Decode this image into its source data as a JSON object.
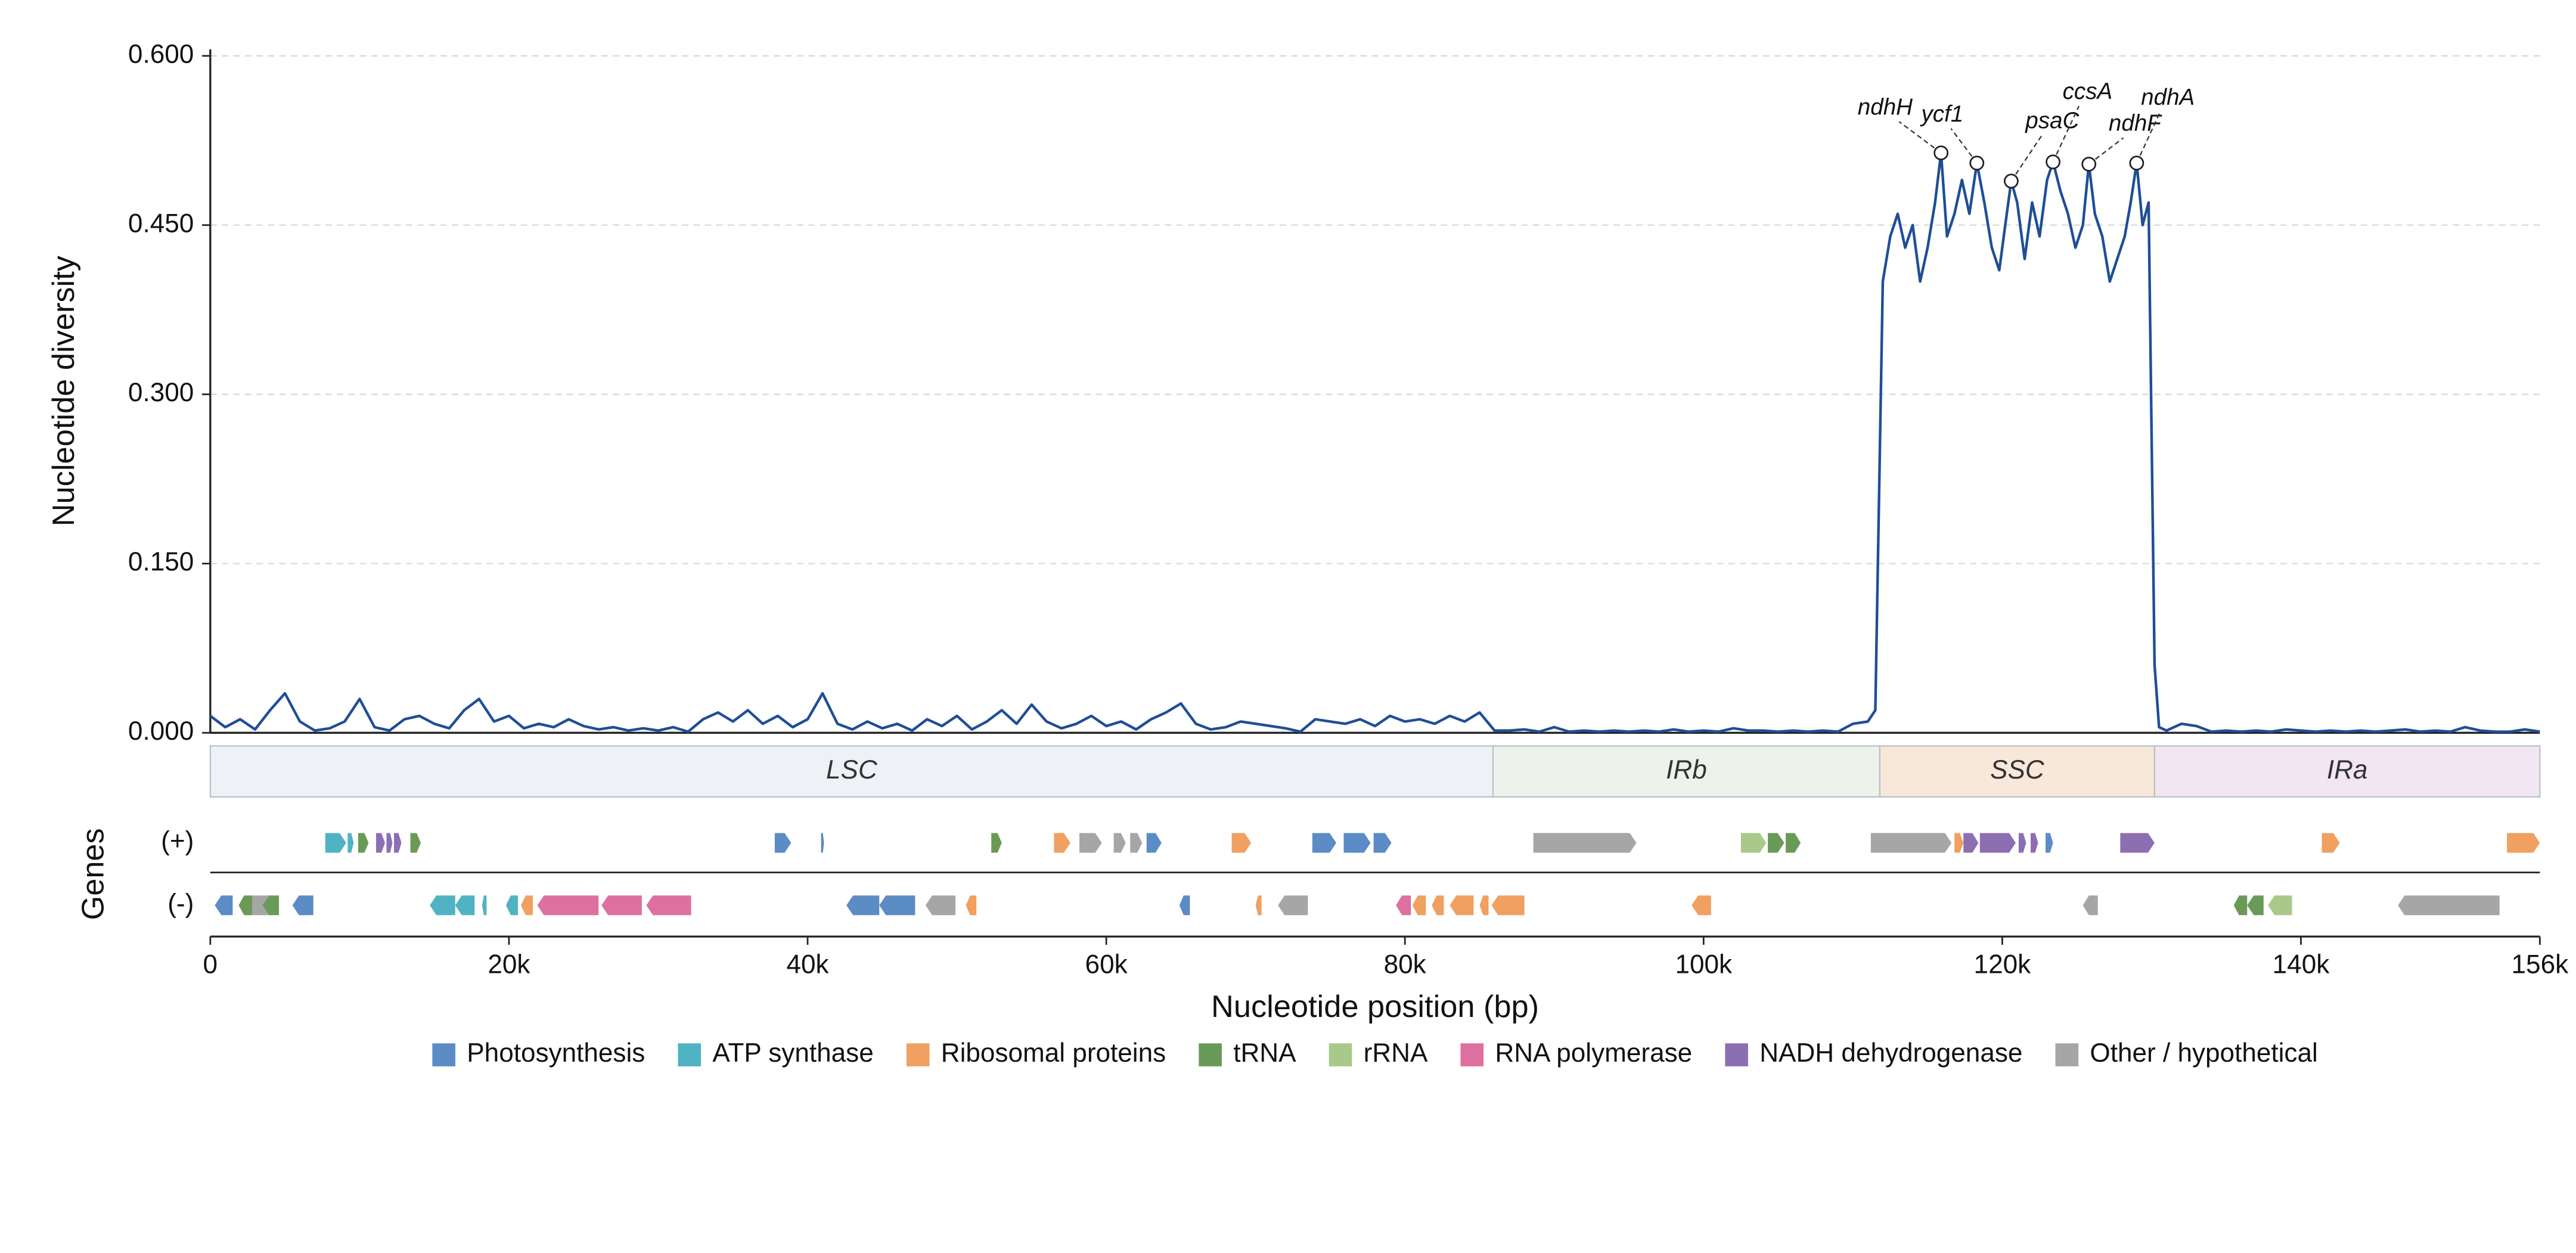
{
  "chart_data": {
    "type": "line",
    "y_label": "Nucleotide diversity",
    "x_label": "Nucleotide position (bp)",
    "xlim": [
      0,
      156000
    ],
    "ylim": [
      0,
      0.6
    ],
    "xticks": [
      0,
      {
        "value": 20000,
        "label": "20k"
      },
      {
        "value": 40000,
        "label": "40k"
      },
      {
        "value": 60000,
        "label": "60k"
      },
      {
        "value": 80000,
        "label": "80k"
      },
      {
        "value": 100000,
        "label": "100k"
      },
      {
        "value": 120000,
        "label": "120k"
      },
      {
        "value": 140000,
        "label": "140k"
      },
      {
        "value": 156000,
        "label": "156k"
      }
    ],
    "yticks": [
      {
        "value": 0,
        "label": "0.000"
      },
      {
        "value": 0.15,
        "label": "0.150"
      },
      {
        "value": 0.3,
        "label": "0.300"
      },
      {
        "value": 0.45,
        "label": "0.450"
      },
      {
        "value": 0.6,
        "label": "0.600"
      }
    ],
    "grid": true,
    "color": "#1f4e96",
    "x": [
      0,
      1000,
      2000,
      3000,
      4000,
      5000,
      6000,
      7000,
      8000,
      9000,
      10000,
      11000,
      12000,
      13000,
      14000,
      15000,
      16000,
      17000,
      18000,
      19000,
      20000,
      21000,
      22000,
      23000,
      24000,
      25000,
      26000,
      27000,
      28000,
      29000,
      30000,
      31000,
      32000,
      33000,
      34000,
      35000,
      36000,
      37000,
      38000,
      39000,
      40000,
      41000,
      42000,
      43000,
      44000,
      45000,
      46000,
      47000,
      48000,
      49000,
      50000,
      51000,
      52000,
      53000,
      54000,
      55000,
      56000,
      57000,
      58000,
      59000,
      60000,
      61000,
      62000,
      63000,
      64000,
      65000,
      66000,
      67000,
      68000,
      69000,
      70000,
      71000,
      72000,
      73000,
      74000,
      75000,
      76000,
      77000,
      78000,
      79000,
      80000,
      81000,
      82000,
      83000,
      84000,
      85000,
      86000,
      87000,
      88000,
      89000,
      90000,
      91000,
      92000,
      93000,
      94000,
      95000,
      96000,
      97000,
      98000,
      99000,
      100000,
      101000,
      102000,
      103000,
      104000,
      105000,
      106000,
      107000,
      108000,
      109000,
      110000,
      111000,
      111500,
      112000,
      112500,
      113000,
      113500,
      114000,
      114500,
      115000,
      115500,
      115900,
      116300,
      116800,
      117300,
      117800,
      118300,
      118800,
      119300,
      119800,
      120200,
      120600,
      121000,
      121500,
      122000,
      122500,
      123000,
      123400,
      123900,
      124400,
      124900,
      125400,
      125800,
      126200,
      126700,
      127200,
      127700,
      128200,
      128600,
      129000,
      129400,
      129800,
      130200,
      130500,
      131000,
      132000,
      133000,
      134000,
      135000,
      136000,
      137000,
      138000,
      139000,
      140000,
      141000,
      142000,
      143000,
      144000,
      145000,
      146000,
      147000,
      148000,
      149000,
      150000,
      151000,
      152000,
      153000,
      154000,
      155000,
      156000
    ],
    "values": [
      0.015,
      0.005,
      0.012,
      0.003,
      0.02,
      0.035,
      0.01,
      0.002,
      0.004,
      0.01,
      0.03,
      0.005,
      0.002,
      0.012,
      0.015,
      0.008,
      0.004,
      0.02,
      0.03,
      0.01,
      0.015,
      0.004,
      0.008,
      0.005,
      0.012,
      0.006,
      0.003,
      0.005,
      0.002,
      0.004,
      0.002,
      0.005,
      0.001,
      0.012,
      0.018,
      0.01,
      0.02,
      0.008,
      0.015,
      0.005,
      0.012,
      0.035,
      0.008,
      0.003,
      0.01,
      0.004,
      0.008,
      0.002,
      0.012,
      0.006,
      0.015,
      0.003,
      0.01,
      0.02,
      0.008,
      0.025,
      0.01,
      0.004,
      0.008,
      0.015,
      0.006,
      0.01,
      0.003,
      0.012,
      0.018,
      0.026,
      0.008,
      0.003,
      0.005,
      0.01,
      0.008,
      0.006,
      0.004,
      0.001,
      0.012,
      0.01,
      0.008,
      0.012,
      0.006,
      0.015,
      0.01,
      0.012,
      0.008,
      0.015,
      0.01,
      0.018,
      0.002,
      0.002,
      0.003,
      0.001,
      0.005,
      0.001,
      0.002,
      0.001,
      0.002,
      0.001,
      0.002,
      0.001,
      0.003,
      0.001,
      0.002,
      0.001,
      0.004,
      0.002,
      0.002,
      0.001,
      0.002,
      0.001,
      0.002,
      0.001,
      0.008,
      0.01,
      0.02,
      0.4,
      0.44,
      0.46,
      0.43,
      0.45,
      0.4,
      0.43,
      0.47,
      0.514,
      0.44,
      0.46,
      0.49,
      0.46,
      0.505,
      0.47,
      0.43,
      0.41,
      0.45,
      0.489,
      0.47,
      0.42,
      0.47,
      0.44,
      0.49,
      0.506,
      0.48,
      0.46,
      0.43,
      0.45,
      0.504,
      0.46,
      0.44,
      0.4,
      0.42,
      0.44,
      0.47,
      0.505,
      0.45,
      0.47,
      0.06,
      0.005,
      0.002,
      0.008,
      0.006,
      0.001,
      0.002,
      0.001,
      0.002,
      0.001,
      0.003,
      0.002,
      0.001,
      0.002,
      0.001,
      0.002,
      0.001,
      0.002,
      0.003,
      0.001,
      0.002,
      0.001,
      0.005,
      0.002,
      0.001,
      0.001,
      0.003,
      0.001
    ],
    "annotations": [
      {
        "text": "ndhH",
        "x": 115900,
        "y": 0.514
      },
      {
        "text": "ycf1",
        "x": 118300,
        "y": 0.505
      },
      {
        "text": "psaC",
        "x": 120600,
        "y": 0.489
      },
      {
        "text": "ccsA",
        "x": 123400,
        "y": 0.506
      },
      {
        "text": "ndhF",
        "x": 125800,
        "y": 0.504
      },
      {
        "text": "ndhA",
        "x": 129000,
        "y": 0.505
      }
    ],
    "regions": [
      {
        "name": "LSC",
        "start": 0,
        "end": 85900,
        "color": "#eef2f6"
      },
      {
        "name": "IRb",
        "start": 85900,
        "end": 111800,
        "color": "#edf3ea"
      },
      {
        "name": "SSC",
        "start": 111800,
        "end": 130200,
        "color": "#f8e8da"
      },
      {
        "name": "IRa",
        "start": 130200,
        "end": 156000,
        "color": "#f1e6f1"
      }
    ],
    "track_label": "Genes",
    "tracks": [
      "(+)",
      "(-)"
    ],
    "legend": [
      {
        "name": "Photosynthesis",
        "color": "#5b8cc6"
      },
      {
        "name": "ATP synthase",
        "color": "#4fb3c4"
      },
      {
        "name": "Ribosomal proteins",
        "color": "#f0a060"
      },
      {
        "name": "tRNA",
        "color": "#6a9a58"
      },
      {
        "name": "rRNA",
        "color": "#a8c98a"
      },
      {
        "name": "RNA polymerase",
        "color": "#de70a0"
      },
      {
        "name": "NADH dehydrogenase",
        "color": "#8c6fb2"
      },
      {
        "name": "Other / hypothetical",
        "color": "#a6a6a6"
      }
    ],
    "genes": [
      {
        "start": 7700,
        "end": 9100,
        "strand": "(+)",
        "category": "ATP synthase"
      },
      {
        "start": 9200,
        "end": 9600,
        "strand": "(+)",
        "category": "ATP synthase"
      },
      {
        "start": 9900,
        "end": 10600,
        "strand": "(+)",
        "category": "tRNA"
      },
      {
        "start": 11100,
        "end": 11700,
        "strand": "(+)",
        "category": "NADH dehydrogenase"
      },
      {
        "start": 11800,
        "end": 12200,
        "strand": "(+)",
        "category": "NADH dehydrogenase"
      },
      {
        "start": 12300,
        "end": 12800,
        "strand": "(+)",
        "category": "NADH dehydrogenase"
      },
      {
        "start": 13400,
        "end": 14100,
        "strand": "(+)",
        "category": "tRNA"
      },
      {
        "start": 37800,
        "end": 38900,
        "strand": "(+)",
        "category": "Photosynthesis"
      },
      {
        "start": 40900,
        "end": 41100,
        "strand": "(+)",
        "category": "Photosynthesis"
      },
      {
        "start": 52300,
        "end": 53000,
        "strand": "(+)",
        "category": "tRNA"
      },
      {
        "start": 56500,
        "end": 57600,
        "strand": "(+)",
        "category": "Ribosomal proteins"
      },
      {
        "start": 58200,
        "end": 59700,
        "strand": "(+)",
        "category": "Other / hypothetical"
      },
      {
        "start": 60500,
        "end": 61300,
        "strand": "(+)",
        "category": "Other / hypothetical"
      },
      {
        "start": 61600,
        "end": 62400,
        "strand": "(+)",
        "category": "Other / hypothetical"
      },
      {
        "start": 62700,
        "end": 63700,
        "strand": "(+)",
        "category": "Photosynthesis"
      },
      {
        "start": 68400,
        "end": 69700,
        "strand": "(+)",
        "category": "Ribosomal proteins"
      },
      {
        "start": 73800,
        "end": 75400,
        "strand": "(+)",
        "category": "Photosynthesis"
      },
      {
        "start": 75900,
        "end": 77700,
        "strand": "(+)",
        "category": "Photosynthesis"
      },
      {
        "start": 77900,
        "end": 79100,
        "strand": "(+)",
        "category": "Photosynthesis"
      },
      {
        "start": 88600,
        "end": 95500,
        "strand": "(+)",
        "category": "Other / hypothetical"
      },
      {
        "start": 102500,
        "end": 104200,
        "strand": "(+)",
        "category": "rRNA"
      },
      {
        "start": 104300,
        "end": 105400,
        "strand": "(+)",
        "category": "tRNA"
      },
      {
        "start": 105500,
        "end": 106500,
        "strand": "(+)",
        "category": "tRNA"
      },
      {
        "start": 111200,
        "end": 116600,
        "strand": "(+)",
        "category": "Other / hypothetical"
      },
      {
        "start": 116800,
        "end": 117400,
        "strand": "(+)",
        "category": "Ribosomal proteins"
      },
      {
        "start": 117400,
        "end": 118400,
        "strand": "(+)",
        "category": "NADH dehydrogenase"
      },
      {
        "start": 118500,
        "end": 120900,
        "strand": "(+)",
        "category": "NADH dehydrogenase"
      },
      {
        "start": 121100,
        "end": 121600,
        "strand": "(+)",
        "category": "NADH dehydrogenase"
      },
      {
        "start": 121900,
        "end": 122400,
        "strand": "(+)",
        "category": "NADH dehydrogenase"
      },
      {
        "start": 122900,
        "end": 123400,
        "strand": "(+)",
        "category": "Photosynthesis"
      },
      {
        "start": 127900,
        "end": 130200,
        "strand": "(+)",
        "category": "NADH dehydrogenase"
      },
      {
        "start": 141400,
        "end": 142600,
        "strand": "(+)",
        "category": "Ribosomal proteins"
      },
      {
        "start": 153800,
        "end": 156000,
        "strand": "(+)",
        "category": "Ribosomal proteins"
      },
      {
        "start": 300,
        "end": 1500,
        "strand": "(-)",
        "category": "Photosynthesis"
      },
      {
        "start": 2100,
        "end": 4100,
        "strand": "(-)",
        "category": "Other / hypothetical"
      },
      {
        "start": 1900,
        "end": 2800,
        "strand": "(-)",
        "category": "tRNA"
      },
      {
        "start": 3500,
        "end": 4600,
        "strand": "(-)",
        "category": "tRNA"
      },
      {
        "start": 5500,
        "end": 6900,
        "strand": "(-)",
        "category": "Photosynthesis"
      },
      {
        "start": 14700,
        "end": 16400,
        "strand": "(-)",
        "category": "ATP synthase"
      },
      {
        "start": 16400,
        "end": 17700,
        "strand": "(-)",
        "category": "ATP synthase"
      },
      {
        "start": 18200,
        "end": 18500,
        "strand": "(-)",
        "category": "ATP synthase"
      },
      {
        "start": 19800,
        "end": 20600,
        "strand": "(-)",
        "category": "ATP synthase"
      },
      {
        "start": 20800,
        "end": 21600,
        "strand": "(-)",
        "category": "Ribosomal proteins"
      },
      {
        "start": 21900,
        "end": 26000,
        "strand": "(-)",
        "category": "RNA polymerase"
      },
      {
        "start": 26200,
        "end": 28900,
        "strand": "(-)",
        "category": "RNA polymerase"
      },
      {
        "start": 29200,
        "end": 32200,
        "strand": "(-)",
        "category": "RNA polymerase"
      },
      {
        "start": 42600,
        "end": 44800,
        "strand": "(-)",
        "category": "Photosynthesis"
      },
      {
        "start": 44800,
        "end": 47200,
        "strand": "(-)",
        "category": "Photosynthesis"
      },
      {
        "start": 47900,
        "end": 49900,
        "strand": "(-)",
        "category": "Other / hypothetical"
      },
      {
        "start": 50600,
        "end": 51300,
        "strand": "(-)",
        "category": "Ribosomal proteins"
      },
      {
        "start": 64900,
        "end": 65600,
        "strand": "(-)",
        "category": "Photosynthesis"
      },
      {
        "start": 70000,
        "end": 70400,
        "strand": "(-)",
        "category": "Ribosomal proteins"
      },
      {
        "start": 71500,
        "end": 73500,
        "strand": "(-)",
        "category": "Other / hypothetical"
      },
      {
        "start": 79400,
        "end": 80400,
        "strand": "(-)",
        "category": "RNA polymerase"
      },
      {
        "start": 80500,
        "end": 81400,
        "strand": "(-)",
        "category": "Ribosomal proteins"
      },
      {
        "start": 81800,
        "end": 82600,
        "strand": "(-)",
        "category": "Ribosomal proteins"
      },
      {
        "start": 83000,
        "end": 84600,
        "strand": "(-)",
        "category": "Ribosomal proteins"
      },
      {
        "start": 85000,
        "end": 85600,
        "strand": "(-)",
        "category": "Ribosomal proteins"
      },
      {
        "start": 85800,
        "end": 88000,
        "strand": "(-)",
        "category": "Ribosomal proteins"
      },
      {
        "start": 99200,
        "end": 100500,
        "strand": "(-)",
        "category": "Ribosomal proteins"
      },
      {
        "start": 125400,
        "end": 126400,
        "strand": "(-)",
        "category": "Other / hypothetical"
      },
      {
        "start": 135500,
        "end": 136400,
        "strand": "(-)",
        "category": "tRNA"
      },
      {
        "start": 136400,
        "end": 137500,
        "strand": "(-)",
        "category": "tRNA"
      },
      {
        "start": 137800,
        "end": 139400,
        "strand": "(-)",
        "category": "rRNA"
      },
      {
        "start": 146500,
        "end": 153300,
        "strand": "(-)",
        "category": "Other / hypothetical"
      }
    ]
  }
}
